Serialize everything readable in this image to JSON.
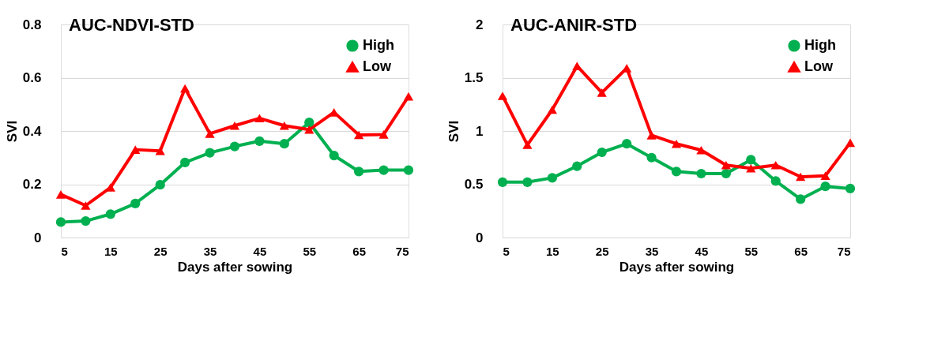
{
  "chart_data": [
    {
      "type": "line",
      "title": "AUC-NDVI-STD",
      "xlabel": "Days after sowing",
      "ylabel": "SVI",
      "x": [
        5,
        10,
        15,
        20,
        25,
        30,
        35,
        40,
        45,
        50,
        55,
        60,
        65,
        70,
        75
      ],
      "xlim": [
        5,
        75
      ],
      "xticks": [
        5,
        15,
        25,
        35,
        45,
        55,
        65,
        75
      ],
      "ylim": [
        0,
        0.8
      ],
      "yticks": [
        0,
        0.2,
        0.4,
        0.6,
        0.8
      ],
      "grid": "y",
      "legend": "top right",
      "series": [
        {
          "name": "High",
          "color": "#00b050",
          "marker": "circle",
          "values": [
            0.058,
            0.062,
            0.088,
            0.128,
            0.198,
            0.282,
            0.318,
            0.342,
            0.362,
            0.352,
            0.432,
            0.308,
            0.248,
            0.253,
            0.253
          ]
        },
        {
          "name": "Low",
          "color": "#ff0000",
          "marker": "triangle",
          "values": [
            0.162,
            0.12,
            0.188,
            0.33,
            0.325,
            0.56,
            0.39,
            0.42,
            0.448,
            0.42,
            0.405,
            0.47,
            0.385,
            0.387,
            0.53
          ]
        }
      ]
    },
    {
      "type": "line",
      "title": "AUC-ANIR-STD",
      "xlabel": "Days after sowing",
      "ylabel": "SVI",
      "x": [
        5,
        10,
        15,
        20,
        25,
        30,
        35,
        40,
        45,
        50,
        55,
        60,
        65,
        70,
        75
      ],
      "xlim": [
        5,
        75
      ],
      "xticks": [
        5,
        15,
        25,
        35,
        45,
        55,
        65,
        75
      ],
      "ylim": [
        0,
        2
      ],
      "yticks": [
        0,
        0.5,
        1,
        1.5,
        2
      ],
      "grid": "y",
      "legend": "top right",
      "series": [
        {
          "name": "High",
          "color": "#00b050",
          "marker": "circle",
          "values": [
            0.52,
            0.52,
            0.56,
            0.67,
            0.8,
            0.88,
            0.75,
            0.62,
            0.6,
            0.6,
            0.73,
            0.53,
            0.36,
            0.48,
            0.46
          ]
        },
        {
          "name": "Low",
          "color": "#ff0000",
          "marker": "triangle",
          "values": [
            1.33,
            0.87,
            1.2,
            1.61,
            1.36,
            1.59,
            0.96,
            0.88,
            0.82,
            0.68,
            0.65,
            0.68,
            0.57,
            0.58,
            0.89
          ]
        }
      ]
    }
  ]
}
